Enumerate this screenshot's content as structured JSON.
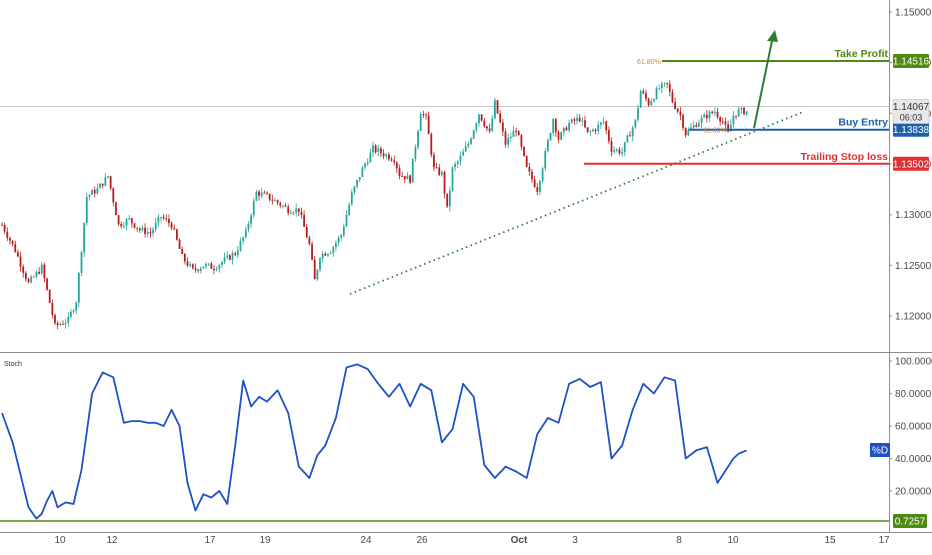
{
  "chart_data": [
    {
      "type": "candlestick",
      "ylim": [
        1.117,
        1.1528
      ],
      "yticks": [
        "1.15000",
        "1.14500",
        "1.14000",
        "1.13500",
        "1.13000",
        "1.12500",
        "1.12000"
      ],
      "yticks_values": [
        1.15,
        1.145,
        1.14,
        1.135,
        1.13,
        1.125,
        1.12
      ],
      "xticks": [
        "10",
        "12",
        "17",
        "19",
        "24",
        "26",
        "Oct",
        "3",
        "8",
        "10",
        "15",
        "17"
      ],
      "price_keypoints": [
        [
          0,
          1.129
        ],
        [
          5,
          1.1265
        ],
        [
          10,
          1.1232
        ],
        [
          15,
          1.1248
        ],
        [
          20,
          1.119
        ],
        [
          25,
          1.1196
        ],
        [
          28,
          1.1215
        ],
        [
          32,
          1.1318
        ],
        [
          36,
          1.1325
        ],
        [
          40,
          1.1338
        ],
        [
          44,
          1.129
        ],
        [
          48,
          1.1295
        ],
        [
          52,
          1.1285
        ],
        [
          56,
          1.1282
        ],
        [
          60,
          1.1298
        ],
        [
          64,
          1.129
        ],
        [
          68,
          1.1258
        ],
        [
          72,
          1.1245
        ],
        [
          76,
          1.125
        ],
        [
          80,
          1.1248
        ],
        [
          84,
          1.1255
        ],
        [
          88,
          1.1262
        ],
        [
          92,
          1.1282
        ],
        [
          96,
          1.1322
        ],
        [
          100,
          1.1318
        ],
        [
          104,
          1.1312
        ],
        [
          108,
          1.1305
        ],
        [
          112,
          1.1305
        ],
        [
          116,
          1.127
        ],
        [
          118,
          1.1235
        ],
        [
          120,
          1.126
        ],
        [
          124,
          1.1265
        ],
        [
          128,
          1.128
        ],
        [
          132,
          1.132
        ],
        [
          136,
          1.1345
        ],
        [
          140,
          1.1365
        ],
        [
          144,
          1.136
        ],
        [
          148,
          1.1355
        ],
        [
          150,
          1.134
        ],
        [
          154,
          1.1335
        ],
        [
          158,
          1.1402
        ],
        [
          160,
          1.1395
        ],
        [
          163,
          1.1345
        ],
        [
          166,
          1.134
        ],
        [
          168,
          1.1305
        ],
        [
          170,
          1.1345
        ],
        [
          172,
          1.1352
        ],
        [
          176,
          1.137
        ],
        [
          180,
          1.14
        ],
        [
          184,
          1.138
        ],
        [
          186,
          1.141
        ],
        [
          190,
          1.137
        ],
        [
          194,
          1.1385
        ],
        [
          198,
          1.1345
        ],
        [
          201,
          1.133
        ],
        [
          202,
          1.1325
        ],
        [
          205,
          1.136
        ],
        [
          208,
          1.1395
        ],
        [
          210,
          1.1375
        ],
        [
          214,
          1.139
        ],
        [
          218,
          1.1395
        ],
        [
          221,
          1.138
        ],
        [
          224,
          1.1385
        ],
        [
          227,
          1.1392
        ],
        [
          230,
          1.1365
        ],
        [
          234,
          1.1362
        ],
        [
          236,
          1.1375
        ],
        [
          239,
          1.1392
        ],
        [
          241,
          1.1422
        ],
        [
          244,
          1.141
        ],
        [
          248,
          1.1425
        ],
        [
          251,
          1.1428
        ],
        [
          253,
          1.1412
        ],
        [
          256,
          1.1398
        ],
        [
          258,
          1.138
        ],
        [
          262,
          1.139
        ],
        [
          266,
          1.1398
        ],
        [
          269,
          1.1402
        ],
        [
          272,
          1.1392
        ],
        [
          274,
          1.138
        ],
        [
          276,
          1.1398
        ],
        [
          278,
          1.1402
        ],
        [
          281,
          1.1402
        ]
      ],
      "levels": [
        {
          "name": "Take Profit",
          "value": 1.14516,
          "badge": "1.14516",
          "color": "#4f8a10"
        },
        {
          "name": "Buy Entry",
          "value": 1.13838,
          "badge": "1.13838",
          "color": "#1d5fa8"
        },
        {
          "name": "Trailing Stop loss",
          "value": 1.13502,
          "badge": "1.13502",
          "color": "#e03030"
        }
      ],
      "current_price": {
        "value": 1.14067,
        "badge": "1.14067",
        "countdown": "06:03"
      },
      "fib_top_label": "61.80%",
      "fib_bottom_label": "61.80%",
      "colors": {
        "up": "#26a69a",
        "down": "#b71c1c",
        "trendline": "#2e7d32",
        "arrow": "#2e7d32"
      }
    },
    {
      "type": "line",
      "name": "Stoch",
      "ylim": [
        0,
        100
      ],
      "yticks": [
        "100.0000",
        "80.0000",
        "60.0000",
        "40.0000",
        "20.0000"
      ],
      "yticks_values": [
        100,
        80,
        60,
        40,
        20
      ],
      "series": [
        {
          "name": "%D",
          "color": "#1e50c8",
          "x": [
            0,
            4,
            7,
            10,
            13,
            15,
            17,
            19,
            21,
            24,
            27,
            30,
            34,
            38,
            42,
            46,
            49,
            52,
            55,
            58,
            61,
            64,
            67,
            70,
            73,
            76,
            79,
            82,
            85,
            88,
            91,
            94,
            97,
            100,
            104,
            108,
            112,
            116,
            119,
            122,
            126,
            130,
            134,
            138,
            142,
            146,
            150,
            154,
            158,
            162,
            166,
            170,
            174,
            178,
            182,
            186,
            190,
            194,
            198,
            202,
            206,
            210,
            214,
            218,
            222,
            226,
            230,
            234,
            238,
            242,
            246,
            250,
            254,
            258,
            262,
            266,
            270,
            274,
            276,
            278,
            281
          ],
          "values": [
            68,
            50,
            30,
            10,
            3,
            6,
            14,
            20,
            10,
            13,
            12,
            33,
            80,
            93,
            90,
            62,
            63,
            63,
            62,
            62,
            60,
            70,
            60,
            25,
            8,
            18,
            16,
            20,
            12,
            48,
            88,
            72,
            78,
            75,
            82,
            68,
            35,
            28,
            42,
            48,
            65,
            96,
            98,
            95,
            86,
            78,
            86,
            72,
            86,
            82,
            50,
            58,
            86,
            78,
            36,
            28,
            35,
            32,
            28,
            55,
            65,
            62,
            86,
            89,
            84,
            87,
            40,
            48,
            70,
            86,
            80,
            90,
            88,
            40,
            45,
            47,
            25,
            35,
            40,
            43,
            45
          ]
        }
      ],
      "threshold": {
        "value": 3,
        "badge": "0.7257",
        "color": "#4f8a10"
      },
      "legend": "%D"
    }
  ]
}
